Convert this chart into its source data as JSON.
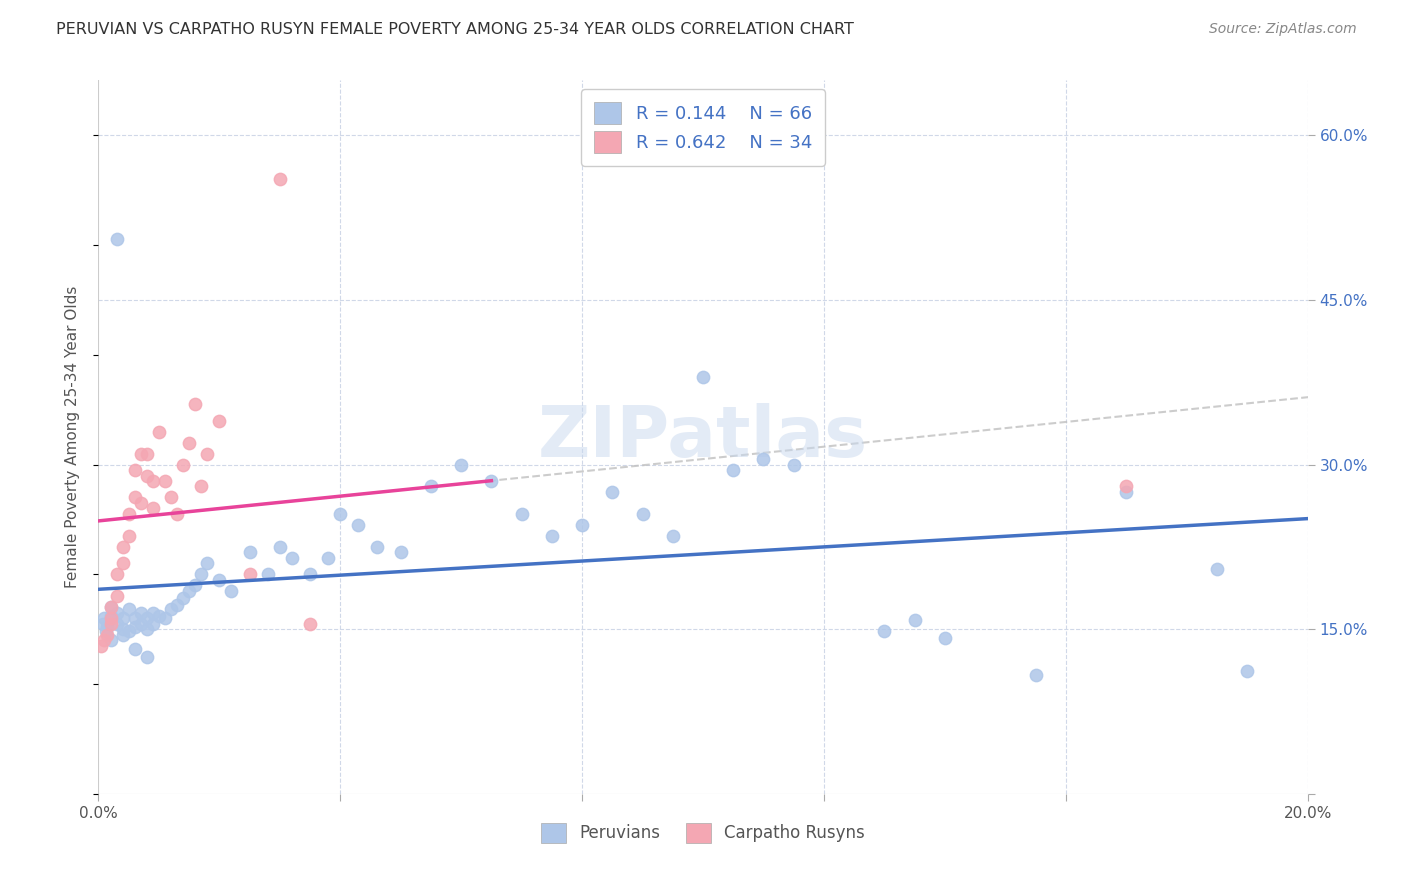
{
  "title": "PERUVIAN VS CARPATHO RUSYN FEMALE POVERTY AMONG 25-34 YEAR OLDS CORRELATION CHART",
  "source": "Source: ZipAtlas.com",
  "ylabel": "Female Poverty Among 25-34 Year Olds",
  "xlim": [
    0.0,
    0.2
  ],
  "ylim": [
    0.0,
    0.65
  ],
  "peruvian_color": "#aec6e8",
  "carpatho_color": "#f4a7b3",
  "peruvian_line_color": "#4472c4",
  "carpatho_line_color": "#e8439a",
  "carpatho_dashed_color": "#c0c0c0",
  "legend_R1": "0.144",
  "legend_N1": "66",
  "legend_R2": "0.642",
  "legend_N2": "34",
  "watermark": "ZIPatlas",
  "background_color": "#ffffff",
  "grid_color": "#d0d8e8",
  "peruvian_x": [
    0.0008,
    0.001,
    0.0012,
    0.0015,
    0.002,
    0.002,
    0.002,
    0.003,
    0.003,
    0.004,
    0.004,
    0.005,
    0.005,
    0.006,
    0.006,
    0.007,
    0.007,
    0.008,
    0.008,
    0.009,
    0.009,
    0.01,
    0.011,
    0.012,
    0.013,
    0.014,
    0.015,
    0.016,
    0.017,
    0.018,
    0.02,
    0.022,
    0.025,
    0.028,
    0.03,
    0.032,
    0.035,
    0.038,
    0.04,
    0.043,
    0.046,
    0.05,
    0.055,
    0.06,
    0.065,
    0.07,
    0.075,
    0.08,
    0.085,
    0.09,
    0.095,
    0.1,
    0.105,
    0.11,
    0.115,
    0.13,
    0.135,
    0.14,
    0.155,
    0.17,
    0.185,
    0.19,
    0.003,
    0.004,
    0.006,
    0.008
  ],
  "peruvian_y": [
    0.155,
    0.16,
    0.148,
    0.152,
    0.14,
    0.162,
    0.17,
    0.155,
    0.165,
    0.15,
    0.16,
    0.148,
    0.168,
    0.152,
    0.16,
    0.155,
    0.165,
    0.15,
    0.16,
    0.155,
    0.165,
    0.162,
    0.16,
    0.168,
    0.172,
    0.178,
    0.185,
    0.19,
    0.2,
    0.21,
    0.195,
    0.185,
    0.22,
    0.2,
    0.225,
    0.215,
    0.2,
    0.215,
    0.255,
    0.245,
    0.225,
    0.22,
    0.28,
    0.3,
    0.285,
    0.255,
    0.235,
    0.245,
    0.275,
    0.255,
    0.235,
    0.38,
    0.295,
    0.305,
    0.3,
    0.148,
    0.158,
    0.142,
    0.108,
    0.275,
    0.205,
    0.112,
    0.505,
    0.145,
    0.132,
    0.125
  ],
  "carpatho_x": [
    0.0005,
    0.001,
    0.0015,
    0.002,
    0.002,
    0.002,
    0.003,
    0.003,
    0.004,
    0.004,
    0.005,
    0.005,
    0.006,
    0.006,
    0.007,
    0.007,
    0.008,
    0.008,
    0.009,
    0.009,
    0.01,
    0.011,
    0.012,
    0.013,
    0.014,
    0.015,
    0.016,
    0.017,
    0.018,
    0.02,
    0.025,
    0.03,
    0.035,
    0.17
  ],
  "carpatho_y": [
    0.135,
    0.14,
    0.145,
    0.155,
    0.16,
    0.17,
    0.18,
    0.2,
    0.21,
    0.225,
    0.235,
    0.255,
    0.27,
    0.295,
    0.31,
    0.265,
    0.29,
    0.31,
    0.285,
    0.26,
    0.33,
    0.285,
    0.27,
    0.255,
    0.3,
    0.32,
    0.355,
    0.28,
    0.31,
    0.34,
    0.2,
    0.56,
    0.155,
    0.28
  ]
}
